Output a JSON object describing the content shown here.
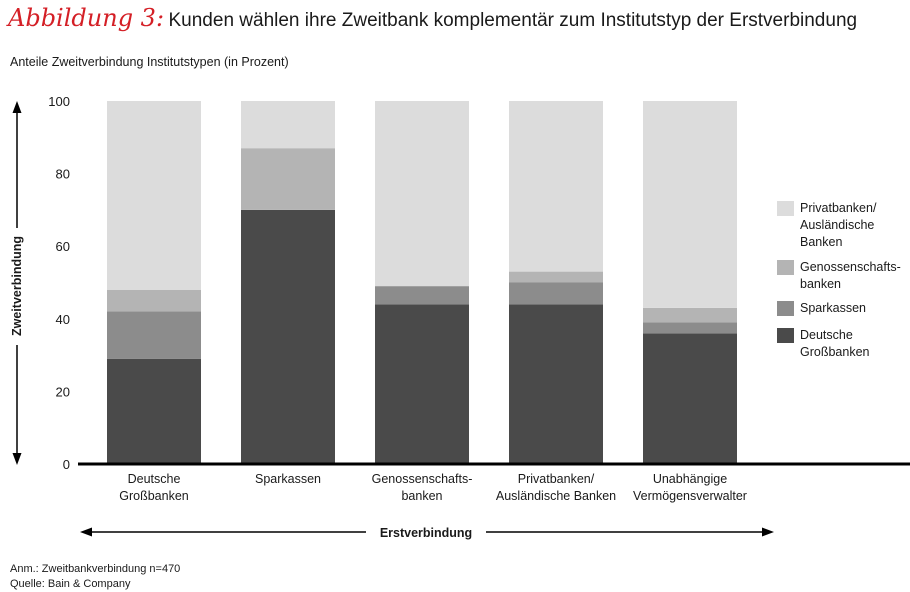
{
  "header": {
    "figure_label": "Abbildung 3:",
    "title": "Kunden wählen ihre Zweitbank komplementär zum Institutstyp der Erstverbindung",
    "subtitle": "Anteile Zweitverbindung Institutstypen (in Prozent)"
  },
  "footer": {
    "note": "Anm.: Zweitbankverbindung n=470",
    "source": "Quelle: Bain & Company"
  },
  "chart_data": {
    "type": "bar",
    "stacked": true,
    "title": "Kunden wählen ihre Zweitbank komplementär zum Institutstyp der Erstverbindung",
    "subtitle": "Anteile Zweitverbindung Institutstypen (in Prozent)",
    "xlabel": "Erstverbindung",
    "ylabel": "Zweitverbindung",
    "ylim": [
      0,
      100
    ],
    "yticks": [
      0,
      20,
      40,
      60,
      80,
      100
    ],
    "grid": false,
    "legend_position": "right",
    "categories": [
      [
        "Deutsche",
        "Großbanken"
      ],
      [
        "Sparkassen"
      ],
      [
        "Genossenschafts-",
        "banken"
      ],
      [
        "Privatbanken/",
        "Ausländische Banken"
      ],
      [
        "Unabhängige",
        "Vermögensverwalter"
      ]
    ],
    "series": [
      {
        "name": [
          "Deutsche",
          "Großbanken"
        ],
        "color": "#4a4a4a",
        "values": [
          29,
          70,
          44,
          44,
          36
        ]
      },
      {
        "name": [
          "Sparkassen"
        ],
        "color": "#8c8c8c",
        "values": [
          13,
          0,
          5,
          6,
          3
        ]
      },
      {
        "name": [
          "Genossenschafts-",
          "banken"
        ],
        "color": "#b4b4b4",
        "values": [
          6,
          17,
          0,
          3,
          4
        ]
      },
      {
        "name": [
          "Privatbanken/",
          "Ausländische",
          "Banken"
        ],
        "color": "#dcdcdc",
        "values": [
          52,
          13,
          51,
          47,
          57
        ]
      }
    ]
  }
}
